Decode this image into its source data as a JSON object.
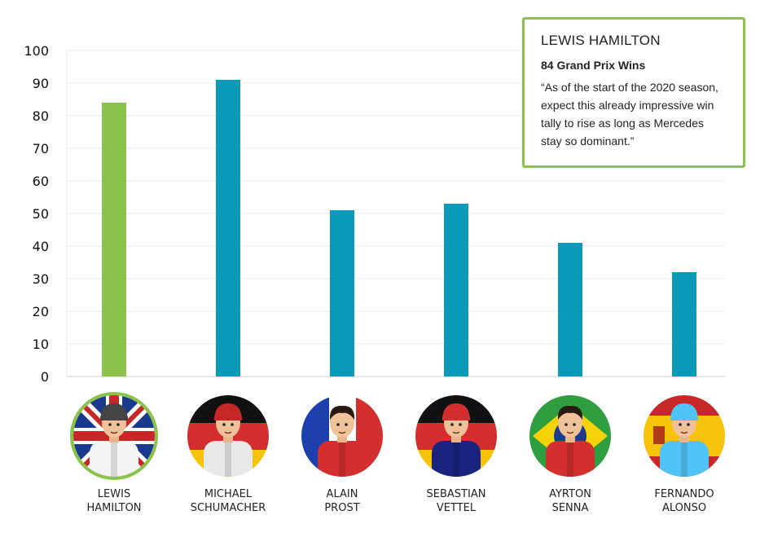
{
  "chart_data": {
    "type": "bar",
    "categories": [
      "LEWIS HAMILTON",
      "MICHAEL SCHUMACHER",
      "ALAIN PROST",
      "SEBASTIAN VETTEL",
      "AYRTON SENNA",
      "FERNANDO ALONSO"
    ],
    "category_lines": [
      [
        "LEWIS",
        "HAMILTON"
      ],
      [
        "MICHAEL",
        "SCHUMACHER"
      ],
      [
        "ALAIN",
        "PROST"
      ],
      [
        "SEBASTIAN",
        "VETTEL"
      ],
      [
        "AYRTON",
        "SENNA"
      ],
      [
        "FERNANDO",
        "ALONSO"
      ]
    ],
    "values": [
      84,
      91,
      51,
      53,
      41,
      32
    ],
    "highlighted_index": 0,
    "ylim": [
      0,
      100
    ],
    "yticks": [
      0,
      10,
      20,
      30,
      40,
      50,
      60,
      70,
      80,
      90,
      100
    ],
    "grid": true,
    "colors": {
      "bar": "#0a9ab8",
      "highlight": "#8bc34a",
      "grid": "#e8e8e8",
      "axis": "#cccccc"
    }
  },
  "tooltip": {
    "title": "LEWIS HAMILTON",
    "subtitle": "84 Grand Prix Wins",
    "quote": "“As of the start of the 2020 season, expect this already impressive win tally to rise as long as Mercedes stay so dominant.”"
  },
  "avatars": [
    {
      "icon": "driver-avatar-uk-flag",
      "flag": "uk",
      "suit": "#f4f4f4",
      "helmet": "#444444"
    },
    {
      "icon": "driver-avatar-germany-flag",
      "flag": "germany",
      "suit": "#e8e8e8",
      "helmet": "#c62828"
    },
    {
      "icon": "driver-avatar-france-flag",
      "flag": "france",
      "suit": "#d32f2f",
      "helmet": "none"
    },
    {
      "icon": "driver-avatar-germany-flag",
      "flag": "germany",
      "suit": "#1a237e",
      "helmet": "#d32f2f"
    },
    {
      "icon": "driver-avatar-brazil-flag",
      "flag": "brazil",
      "suit": "#d32f2f",
      "helmet": "none"
    },
    {
      "icon": "driver-avatar-spain-flag",
      "flag": "spain",
      "suit": "#4fc3f7",
      "helmet": "#4fc3f7"
    }
  ]
}
